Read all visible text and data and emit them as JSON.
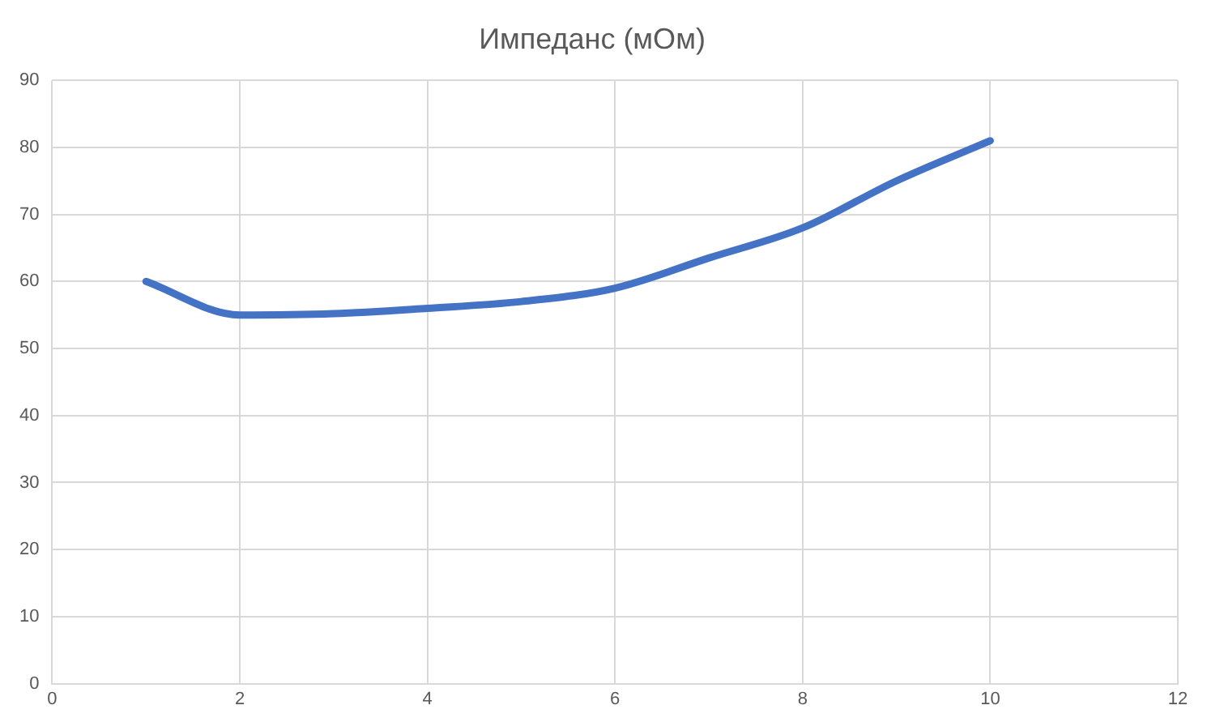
{
  "chart_data": {
    "type": "line",
    "title": "Импеданс (мОм)",
    "x": [
      1,
      2,
      3,
      4,
      5,
      6,
      7,
      8,
      9,
      10
    ],
    "series": [
      {
        "color": "#4472c4",
        "values": [
          60,
          55,
          55.2,
          56,
          57,
          59,
          63.5,
          68,
          75,
          81
        ]
      }
    ],
    "xlim": [
      0,
      12
    ],
    "xticks": [
      0,
      2,
      4,
      6,
      8,
      10,
      12
    ],
    "ylim": [
      0,
      90
    ],
    "yticks": [
      0,
      10,
      20,
      30,
      40,
      50,
      60,
      70,
      80,
      90
    ],
    "grid": true,
    "legend": false,
    "marker": "none",
    "line_style": "solid"
  }
}
